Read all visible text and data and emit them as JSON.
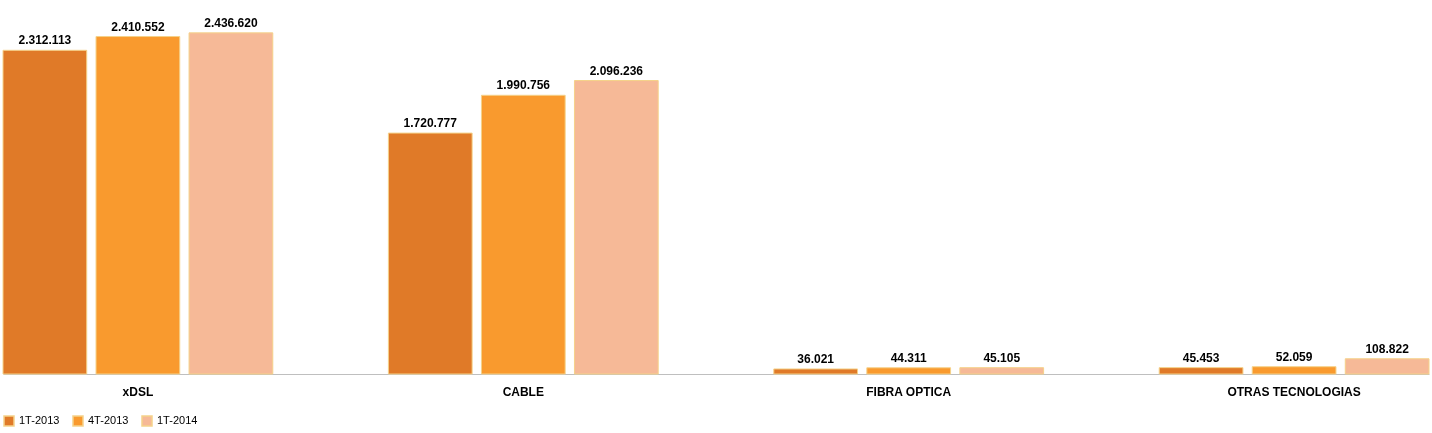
{
  "chart_data": {
    "type": "bar",
    "categories": [
      "xDSL",
      "CABLE",
      "FIBRA OPTICA",
      "OTRAS TECNOLOGIAS"
    ],
    "series": [
      {
        "name": "1T-2013",
        "color": "#e07a28",
        "values": [
          2312113,
          1720777,
          36021,
          45453
        ],
        "value_labels": [
          "2.312.113",
          "1.720.777",
          "36.021",
          "45.453"
        ]
      },
      {
        "name": "4T-2013",
        "color": "#f99a2e",
        "values": [
          2410552,
          1990756,
          44311,
          52059
        ],
        "value_labels": [
          "2.410.552",
          "1.990.756",
          "44.311",
          "52.059"
        ]
      },
      {
        "name": "1T-2014",
        "color": "#f6b997",
        "values": [
          2436620,
          2096236,
          45105,
          108822
        ],
        "value_labels": [
          "2.436.620",
          "2.096.236",
          "45.105",
          "108.822"
        ]
      }
    ],
    "legend": "bottom",
    "grid": false
  }
}
